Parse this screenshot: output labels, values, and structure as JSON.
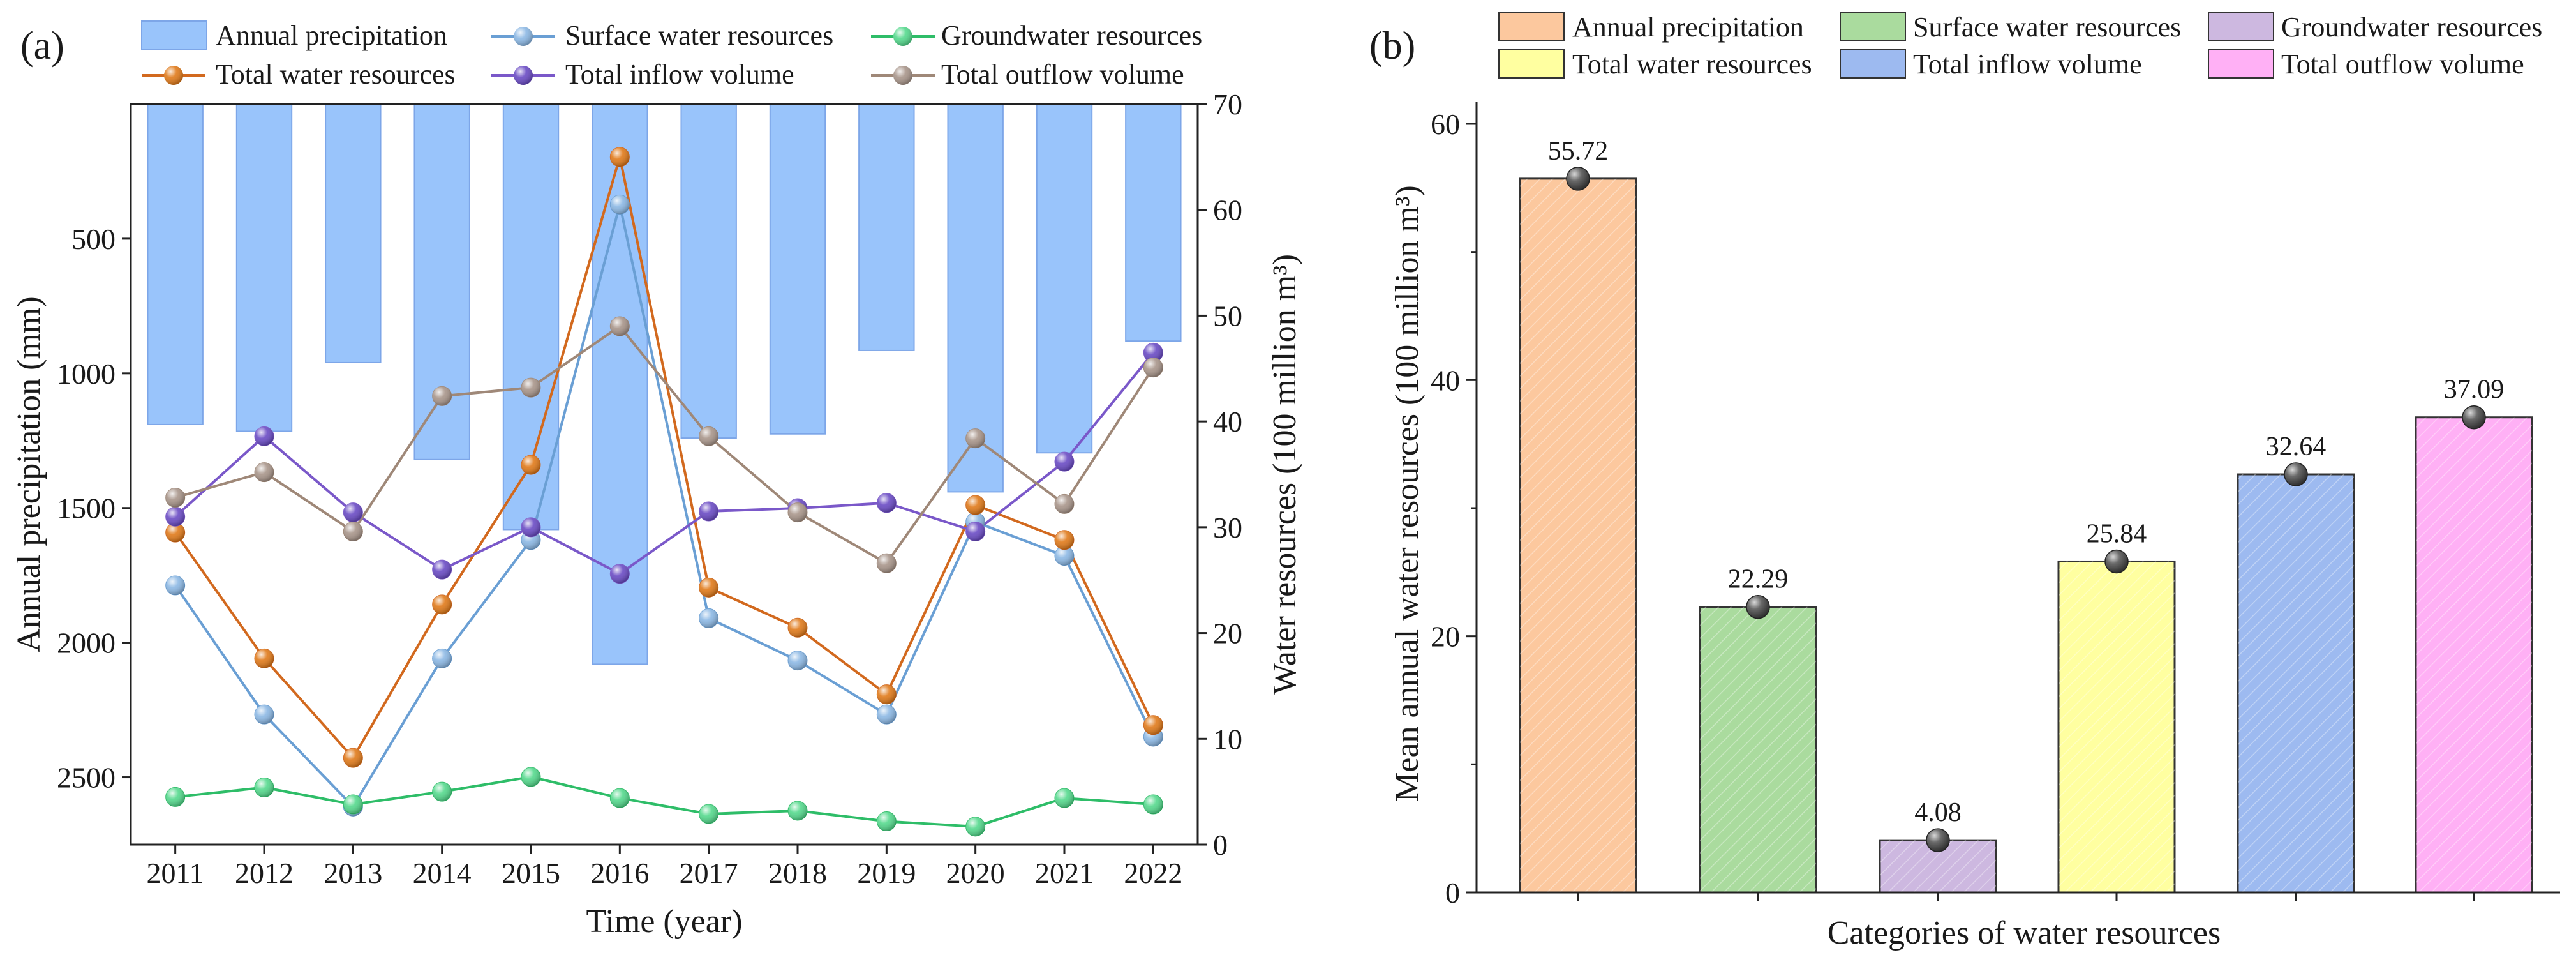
{
  "chart_data": [
    {
      "panel": "(a)",
      "type": "bar+line",
      "xlabel": "Time (year)",
      "ylabel_left": "Annual precipitation (mm)",
      "ylabel_right": "Water resources (100 million m³)",
      "categories": [
        "2011",
        "2012",
        "2013",
        "2014",
        "2015",
        "2016",
        "2017",
        "2018",
        "2019",
        "2020",
        "2021",
        "2022"
      ],
      "left_axis": {
        "reversed": true,
        "ylim": [
          0,
          2750
        ],
        "ticks": [
          "500",
          "1000",
          "1500",
          "2000",
          "2500"
        ],
        "tick_values": [
          500,
          1000,
          1500,
          2000,
          2500
        ]
      },
      "right_axis": {
        "ylim": [
          0,
          70
        ],
        "ticks": [
          "0",
          "10",
          "20",
          "30",
          "40",
          "50",
          "60",
          "70"
        ],
        "tick_values": [
          0,
          10,
          20,
          30,
          40,
          50,
          60,
          70
        ]
      },
      "bar_series": {
        "name": "Annual precipitation",
        "color": "#99c4fb",
        "edge": "#7da6e8",
        "values": [
          1190,
          1215,
          960,
          1320,
          1580,
          2080,
          1240,
          1225,
          915,
          1440,
          1295,
          880
        ]
      },
      "line_series": [
        {
          "name": "Surface water resources",
          "color": "#6a9fd4",
          "ball": "#8cb8e4",
          "values": [
            24.5,
            12.3,
            3.6,
            17.6,
            28.8,
            60.5,
            21.4,
            17.4,
            12.3,
            30.5,
            27.3,
            10.2
          ]
        },
        {
          "name": "Groundwater resources",
          "color": "#2ebd68",
          "ball": "#55d98d",
          "values": [
            4.5,
            5.4,
            3.8,
            5.0,
            6.4,
            4.4,
            2.9,
            3.2,
            2.2,
            1.7,
            4.4,
            3.8
          ]
        },
        {
          "name": "Total water resources",
          "color": "#d2691e",
          "ball": "#e07a1a",
          "values": [
            29.5,
            17.6,
            8.2,
            22.7,
            35.9,
            65.0,
            24.3,
            20.5,
            14.2,
            32.1,
            28.8,
            11.3
          ]
        },
        {
          "name": "Total inflow volume",
          "color": "#7a58c9",
          "ball": "#6a4bc4",
          "values": [
            31.0,
            38.6,
            31.4,
            26.0,
            30.0,
            25.6,
            31.5,
            31.8,
            32.3,
            29.6,
            36.2,
            46.5
          ]
        },
        {
          "name": "Total outflow volume",
          "color": "#9f8878",
          "ball": "#a8958a",
          "values": [
            32.8,
            35.2,
            29.6,
            42.4,
            43.2,
            49.0,
            38.6,
            31.4,
            26.6,
            38.4,
            32.2,
            45.1
          ]
        }
      ],
      "legend_order": [
        "Annual precipitation",
        "Surface water resources",
        "Groundwater resources",
        "Total water resources",
        "Total inflow volume",
        "Total outflow volume"
      ]
    },
    {
      "panel": "(b)",
      "type": "bar",
      "xlabel": "Categories of water resources",
      "ylabel": "Mean annual water resources (100 million m³)",
      "ylim": [
        0,
        60
      ],
      "ticks": [
        "0",
        "20",
        "40",
        "60"
      ],
      "tick_values": [
        0,
        20,
        40,
        60
      ],
      "categories": [
        "Annual precipitation",
        "Surface water resources",
        "Groundwater resources",
        "Total water resources",
        "Total inflow volume",
        "Total outflow volume"
      ],
      "values": [
        55.72,
        22.29,
        4.08,
        25.84,
        32.64,
        37.09
      ],
      "labels": [
        "55.72",
        "22.29",
        "4.08",
        "25.84",
        "32.64",
        "37.09"
      ],
      "colors": [
        "#fcc89e",
        "#aadb9e",
        "#cdb8e0",
        "#ffffa0",
        "#9dbaf0",
        "#ffb0f5"
      ],
      "legend_order": [
        "Annual precipitation",
        "Surface water resources",
        "Groundwater resources",
        "Total water resources",
        "Total inflow volume",
        "Total outflow volume"
      ]
    }
  ]
}
